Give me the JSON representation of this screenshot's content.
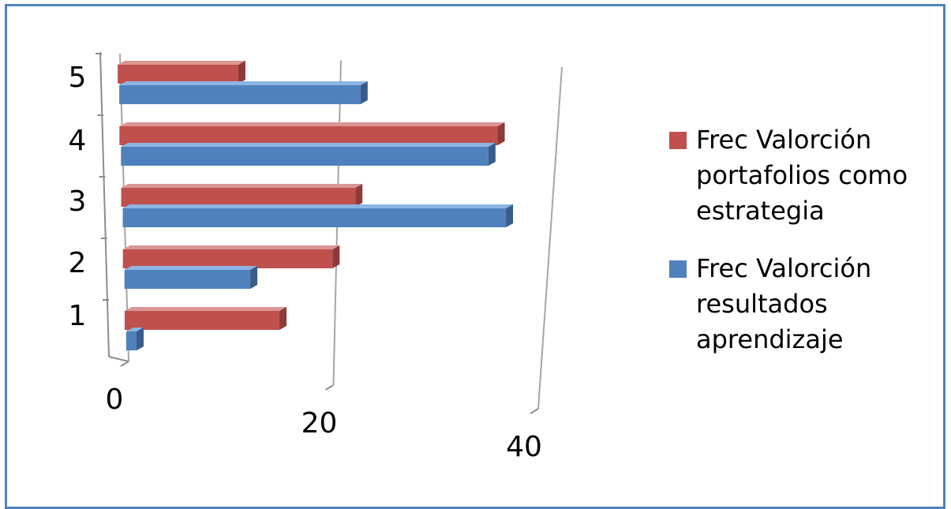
{
  "chart_data": {
    "type": "bar",
    "orientation": "horizontal",
    "categories": [
      "1",
      "2",
      "3",
      "4",
      "5"
    ],
    "series": [
      {
        "name": "Frec Valorción portafolios como estrategia",
        "color": "#c0504d",
        "values": [
          15,
          20,
          22,
          35,
          11
        ]
      },
      {
        "name": "Frec Valorción resultados aprendizaje",
        "color": "#4f81bd",
        "values": [
          1,
          12,
          36,
          34,
          22
        ]
      }
    ],
    "xticks": [
      "0",
      "20",
      "40"
    ],
    "xlim": [
      0,
      40
    ],
    "grid": true,
    "legend_position": "right",
    "style": "3d"
  }
}
